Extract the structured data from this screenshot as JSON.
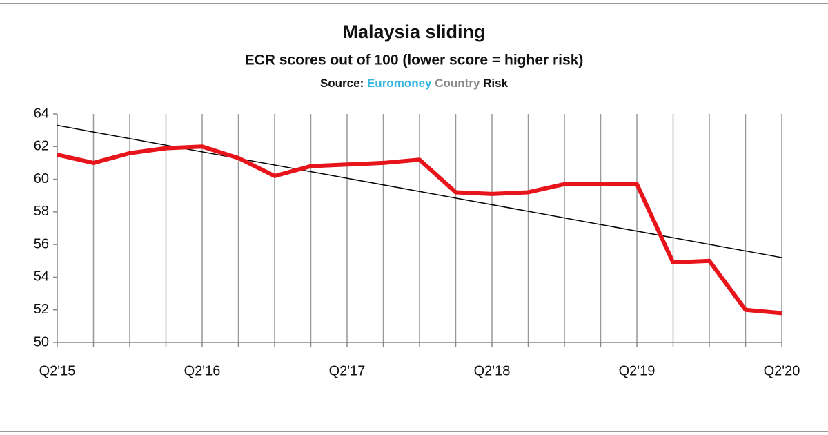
{
  "chart_data": {
    "type": "line",
    "title": "Malaysia sliding",
    "subtitle": "ECR scores out of 100 (lower score = higher risk)",
    "source": [
      {
        "text": "Source:",
        "color": "#111111"
      },
      {
        "text": "Euromoney",
        "color": "#35b6e0"
      },
      {
        "text": "Country",
        "color": "#8a8a8a"
      },
      {
        "text": "Risk",
        "color": "#111111"
      }
    ],
    "categories": [
      "Q2'15",
      null,
      null,
      null,
      "Q2'16",
      null,
      null,
      null,
      "Q2'17",
      null,
      null,
      null,
      "Q2'18",
      null,
      null,
      null,
      "Q2'19",
      null,
      null,
      null,
      "Q2'20"
    ],
    "series": [
      {
        "color": "#e8141b",
        "values": [
          61.5,
          61.0,
          61.6,
          61.9,
          62.0,
          61.3,
          60.2,
          60.8,
          60.9,
          61.0,
          61.2,
          59.2,
          59.1,
          59.2,
          59.7,
          59.7,
          59.7,
          54.9,
          55.0,
          52.0,
          51.8
        ]
      }
    ],
    "trendline": {
      "color": "#000000",
      "values": [
        63.3,
        55.2
      ]
    },
    "ylim": [
      50,
      64
    ],
    "yticks": [
      50,
      52,
      54,
      56,
      58,
      60,
      62,
      64
    ],
    "grid": true
  }
}
